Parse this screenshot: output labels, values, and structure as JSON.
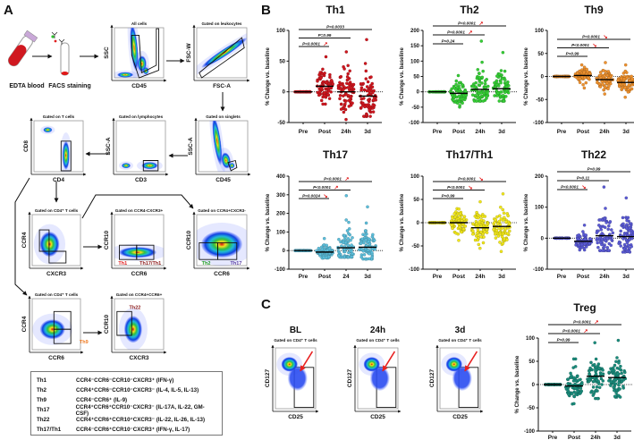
{
  "panel_labels": {
    "a": "A",
    "b": "B",
    "c": "C"
  },
  "panel_a": {
    "sample_steps": [
      "EDTA blood",
      "FACS staining"
    ],
    "gating_plots": [
      {
        "title": "All cells",
        "xlabel": "CD45",
        "ylabel": "SSC"
      },
      {
        "title": "Gated on leukocytes",
        "xlabel": "FSC-A",
        "ylabel": "FSC-W"
      },
      {
        "title": "Gated on singlets",
        "xlabel": "CD45",
        "ylabel": "SSC-A"
      },
      {
        "title": "Gated on lymphocytes",
        "xlabel": "CD3",
        "ylabel": "SSC-A"
      },
      {
        "title": "Gated on T cells",
        "xlabel": "CD4",
        "ylabel": "CD8"
      },
      {
        "title": "Gated on CD4⁺ T cells",
        "xlabel": "CXCR3",
        "ylabel": "CCR4"
      },
      {
        "title": "Gated on CCR4-CXCR3+",
        "xlabel": "CCR6",
        "ylabel": "CCR10",
        "gates": [
          {
            "label": "Th1",
            "color": "#e01b1b"
          },
          {
            "label": "Th17/Th1",
            "color": "#8b1a1a"
          }
        ]
      },
      {
        "title": "Gated on CCR4+CXCR3-",
        "xlabel": "CCR6",
        "ylabel": "CCR10",
        "gates": [
          {
            "label": "Th2",
            "color": "#1f9a1f"
          },
          {
            "label": "Th17",
            "color": "#5a3fa0"
          }
        ]
      },
      {
        "title": "Gated on CD4⁺ T cells",
        "xlabel": "CCR6",
        "ylabel": "CCR4",
        "gates": [
          {
            "label": "Th9",
            "color": "#f07a20"
          }
        ]
      },
      {
        "title": "Gated on CCR4+CCR6+",
        "xlabel": "CXCR3",
        "ylabel": "CCR10",
        "gates": [
          {
            "label": "Th22",
            "color": "#8b1a1a"
          }
        ]
      }
    ],
    "phenotype_table": [
      {
        "subset": "Th1",
        "markers": "CCR4⁻CCR6⁻CCR10⁻CXCR3⁺ (IFN-γ)"
      },
      {
        "subset": "Th2",
        "markers": "CCR4⁺CCR6⁻CCR10⁻CXCR3⁻ (IL-4, IL-5, IL-13)"
      },
      {
        "subset": "Th9",
        "markers": "CCR4⁻CCR6⁺ (IL-9)"
      },
      {
        "subset": "Th17",
        "markers": "CCR4⁺CCR6⁺CCR10⁻CXCR3⁻ (IL-17A, IL-22, GM-CSF)"
      },
      {
        "subset": "Th22",
        "markers": "CCR4⁺CCR6⁺CCR10⁺CXCR3⁻ (IL-22, IL-26, IL-13)"
      },
      {
        "subset": "Th17/Th1",
        "markers": "CCR4⁻CCR6⁺CCR10⁻CXCR3⁺ (IFN-γ, IL-17)"
      }
    ]
  },
  "panel_c": {
    "flow_plots": [
      {
        "title": "BL",
        "subtitle": "Gated on CD4⁺ T cells",
        "xlabel": "CD25",
        "ylabel": "CD127"
      },
      {
        "title": "24h",
        "subtitle": "Gated on CD4⁺ T cells",
        "xlabel": "CD25",
        "ylabel": "CD127"
      },
      {
        "title": "3d",
        "subtitle": "Gated on CD4⁺ T cells",
        "xlabel": "CD25",
        "ylabel": "CD127"
      }
    ]
  },
  "chart_data": [
    {
      "type": "scatter",
      "title": "Th1",
      "ylabel": "% Change vs. baseline",
      "ylim": [
        -50,
        100
      ],
      "yticks": [
        -50,
        0,
        50,
        100
      ],
      "categories": [
        "Pre",
        "Post",
        "24h",
        "3d"
      ],
      "color": "#d0161e",
      "groups": [
        {
          "median": 0,
          "range": [
            0,
            0
          ]
        },
        {
          "median": 9,
          "range": [
            -20,
            57
          ]
        },
        {
          "median": 0,
          "range": [
            -45,
            65
          ]
        },
        {
          "median": -7,
          "range": [
            -40,
            85
          ]
        }
      ],
      "comparisons": [
        {
          "vs": "Post",
          "label": "P<0.0001",
          "trend": "up"
        },
        {
          "vs": "24h",
          "label": "P=0.99",
          "trend": ""
        },
        {
          "vs": "3d",
          "label": "P=0.0033",
          "trend": ""
        }
      ]
    },
    {
      "type": "scatter",
      "title": "Th2",
      "ylabel": "% Change vs. baseline",
      "ylim": [
        -100,
        200
      ],
      "yticks": [
        -100,
        -50,
        0,
        50,
        100,
        150,
        200
      ],
      "categories": [
        "Pre",
        "Post",
        "24h",
        "3d"
      ],
      "color": "#35cf35",
      "groups": [
        {
          "median": 0,
          "range": [
            0,
            0
          ]
        },
        {
          "median": -5,
          "range": [
            -50,
            53
          ]
        },
        {
          "median": 8,
          "range": [
            -30,
            165
          ]
        },
        {
          "median": 10,
          "range": [
            -30,
            128
          ]
        }
      ],
      "comparisons": [
        {
          "vs": "Post",
          "label": "P=0.24",
          "trend": ""
        },
        {
          "vs": "24h",
          "label": "P<0.0001",
          "trend": "up"
        },
        {
          "vs": "3d",
          "label": "P<0.0001",
          "trend": "up"
        }
      ]
    },
    {
      "type": "scatter",
      "title": "Th9",
      "ylabel": "% Change vs. baseline",
      "ylim": [
        -100,
        100
      ],
      "yticks": [
        -100,
        -50,
        0,
        50,
        100
      ],
      "categories": [
        "Pre",
        "Post",
        "24h",
        "3d"
      ],
      "color": "#f0922e",
      "groups": [
        {
          "median": 0,
          "range": [
            0,
            0
          ]
        },
        {
          "median": 2,
          "range": [
            -25,
            25
          ]
        },
        {
          "median": -7,
          "range": [
            -38,
            30
          ]
        },
        {
          "median": -13,
          "range": [
            -45,
            25
          ]
        }
      ],
      "comparisons": [
        {
          "vs": "Post",
          "label": "P=0.99",
          "trend": ""
        },
        {
          "vs": "24h",
          "label": "P<0.0001",
          "trend": "down"
        },
        {
          "vs": "3d",
          "label": "P<0.0001",
          "trend": "down"
        }
      ]
    },
    {
      "type": "scatter",
      "title": "Th17",
      "ylabel": "% Change vs. baseline",
      "ylim": [
        -100,
        400
      ],
      "yticks": [
        -100,
        0,
        100,
        200,
        300,
        400
      ],
      "categories": [
        "Pre",
        "Post",
        "24",
        "3d"
      ],
      "color": "#5cbfdc",
      "groups": [
        {
          "median": 0,
          "range": [
            0,
            0
          ]
        },
        {
          "median": -8,
          "range": [
            -40,
            65
          ]
        },
        {
          "median": 15,
          "range": [
            -35,
            295
          ]
        },
        {
          "median": 18,
          "range": [
            -45,
            235
          ]
        }
      ],
      "comparisons": [
        {
          "vs": "Post",
          "label": "P=0.0024",
          "trend": "down"
        },
        {
          "vs": "24",
          "label": "P<0.0001",
          "trend": "up"
        },
        {
          "vs": "3d",
          "label": "P<0.0001",
          "trend": "up"
        }
      ]
    },
    {
      "type": "scatter",
      "title": "Th17/Th1",
      "ylabel": "% Change vs. baseline",
      "ylim": [
        -100,
        100
      ],
      "yticks": [
        -100,
        -50,
        0,
        50,
        100
      ],
      "categories": [
        "Pre",
        "Post",
        "24h",
        "3d"
      ],
      "color": "#f3e81a",
      "groups": [
        {
          "median": 0,
          "range": [
            0,
            0
          ]
        },
        {
          "median": 0,
          "range": [
            -38,
            30
          ]
        },
        {
          "median": -11,
          "range": [
            -55,
            45
          ]
        },
        {
          "median": -8,
          "range": [
            -62,
            62
          ]
        }
      ],
      "comparisons": [
        {
          "vs": "Post",
          "label": "P=0.99",
          "trend": ""
        },
        {
          "vs": "24h",
          "label": "P<0.0001",
          "trend": "down"
        },
        {
          "vs": "3d",
          "label": "P<0.0001",
          "trend": "down"
        }
      ]
    },
    {
      "type": "scatter",
      "title": "Th22",
      "ylabel": "% Change vs. baseline",
      "ylim": [
        -100,
        200
      ],
      "yticks": [
        -100,
        0,
        100,
        200
      ],
      "categories": [
        "Pre",
        "Post",
        "24h",
        "3d"
      ],
      "color": "#5a5ad6",
      "groups": [
        {
          "median": 0,
          "range": [
            0,
            0
          ]
        },
        {
          "median": -10,
          "range": [
            -38,
            42
          ]
        },
        {
          "median": 8,
          "range": [
            -40,
            165
          ]
        },
        {
          "median": 5,
          "range": [
            -45,
            130
          ]
        }
      ],
      "comparisons": [
        {
          "vs": "Post",
          "label": "P<0.0001",
          "trend": "down"
        },
        {
          "vs": "24h",
          "label": "P=0.11",
          "trend": ""
        },
        {
          "vs": "3d",
          "label": "P=0.99",
          "trend": ""
        }
      ]
    },
    {
      "type": "scatter",
      "title": "Treg",
      "ylabel": "% Change vs. baseline",
      "ylim": [
        -100,
        100
      ],
      "yticks": [
        -100,
        -50,
        0,
        50,
        100
      ],
      "categories": [
        "Pre",
        "Post",
        "24h",
        "3d"
      ],
      "color": "#1a8c7c",
      "groups": [
        {
          "median": 0,
          "range": [
            0,
            0
          ]
        },
        {
          "median": -3,
          "range": [
            -42,
            55
          ]
        },
        {
          "median": 18,
          "range": [
            -30,
            90
          ]
        },
        {
          "median": 15,
          "range": [
            -27,
            95
          ]
        }
      ],
      "comparisons": [
        {
          "vs": "Post",
          "label": "P=0.99",
          "trend": ""
        },
        {
          "vs": "24h",
          "label": "P<0.0001",
          "trend": "up"
        },
        {
          "vs": "3d",
          "label": "P<0.0001",
          "trend": "up"
        }
      ]
    }
  ],
  "trend_icons": {
    "up": "↗",
    "down": "↘"
  },
  "colors": {
    "significance_arrow": "#e01b1b",
    "flow_arrow": "#e82020"
  }
}
